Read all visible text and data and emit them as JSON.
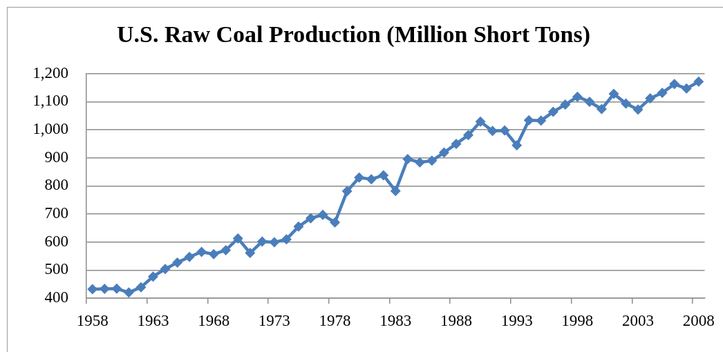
{
  "chart_data": {
    "type": "line",
    "title": "U.S. Raw Coal Production (Million Short Tons)",
    "categories": [
      "1958",
      null,
      null,
      null,
      null,
      "1963",
      null,
      null,
      null,
      null,
      "1968",
      null,
      null,
      null,
      null,
      "1973",
      null,
      null,
      null,
      null,
      "1978",
      null,
      null,
      null,
      null,
      "1983",
      null,
      null,
      null,
      null,
      "1988",
      null,
      null,
      null,
      null,
      "1993",
      null,
      null,
      null,
      null,
      "1998",
      null,
      null,
      null,
      null,
      "2003",
      null,
      null,
      null,
      null,
      "2008"
    ],
    "series": [
      {
        "color": "#4a7ebb",
        "values": [
          432,
          433,
          434,
          420,
          439,
          477,
          504,
          527,
          547,
          565,
          557,
          571,
          613,
          561,
          602,
          599,
          610,
          655,
          685,
          697,
          670,
          781,
          830,
          824,
          838,
          782,
          896,
          884,
          890,
          919,
          950,
          981,
          1029,
          996,
          998,
          945,
          1034,
          1033,
          1064,
          1090,
          1118,
          1100,
          1074,
          1128,
          1094,
          1072,
          1112,
          1132,
          1163,
          1147,
          1172
        ]
      }
    ],
    "ylim": [
      400,
      1200
    ],
    "yticks": [
      400,
      500,
      600,
      700,
      800,
      900,
      {
        "value": 1000,
        "label": "1,000"
      },
      {
        "value": 1100,
        "label": "1,100"
      },
      {
        "value": 1200,
        "label": "1,200"
      }
    ],
    "grid": "y",
    "legend": false,
    "marker": "diamond",
    "line_style": "solid"
  }
}
